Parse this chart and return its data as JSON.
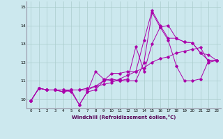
{
  "xlabel": "Windchill (Refroidissement éolien,°C)",
  "bg_color": "#cce8ee",
  "line_color": "#aa00aa",
  "grid_color": "#aacccc",
  "x": [
    0,
    1,
    2,
    3,
    4,
    5,
    6,
    7,
    8,
    9,
    10,
    11,
    12,
    13,
    14,
    15,
    16,
    17,
    18,
    19,
    20,
    21,
    22,
    23
  ],
  "series1": [
    9.9,
    10.6,
    10.5,
    10.5,
    10.5,
    10.4,
    9.7,
    10.4,
    10.5,
    11.0,
    11.1,
    11.0,
    11.1,
    12.85,
    11.5,
    13.0,
    13.9,
    14.0,
    13.3,
    13.1,
    13.05,
    12.5,
    12.1,
    12.1
  ],
  "series2": [
    9.9,
    10.6,
    10.5,
    10.5,
    10.5,
    10.5,
    10.5,
    10.6,
    10.7,
    10.8,
    10.9,
    11.1,
    11.3,
    11.5,
    11.7,
    12.0,
    12.2,
    12.3,
    12.5,
    12.6,
    12.7,
    12.8,
    12.0,
    12.1
  ],
  "series3": [
    9.9,
    10.6,
    10.5,
    10.5,
    10.4,
    10.5,
    9.7,
    10.4,
    11.5,
    11.1,
    11.0,
    11.0,
    11.0,
    11.0,
    12.0,
    14.7,
    13.9,
    13.2,
    11.8,
    11.0,
    11.0,
    11.1,
    12.1,
    12.1
  ],
  "series4": [
    9.9,
    10.6,
    10.5,
    10.5,
    10.4,
    10.5,
    10.5,
    10.5,
    10.7,
    11.0,
    11.4,
    11.4,
    11.5,
    11.5,
    13.2,
    14.8,
    14.0,
    13.3,
    13.3,
    13.1,
    13.05,
    12.5,
    12.4,
    12.1
  ],
  "ylim": [
    9.5,
    15.3
  ],
  "yticks": [
    10,
    11,
    12,
    13,
    14,
    15
  ],
  "xlim": [
    -0.5,
    23.5
  ]
}
